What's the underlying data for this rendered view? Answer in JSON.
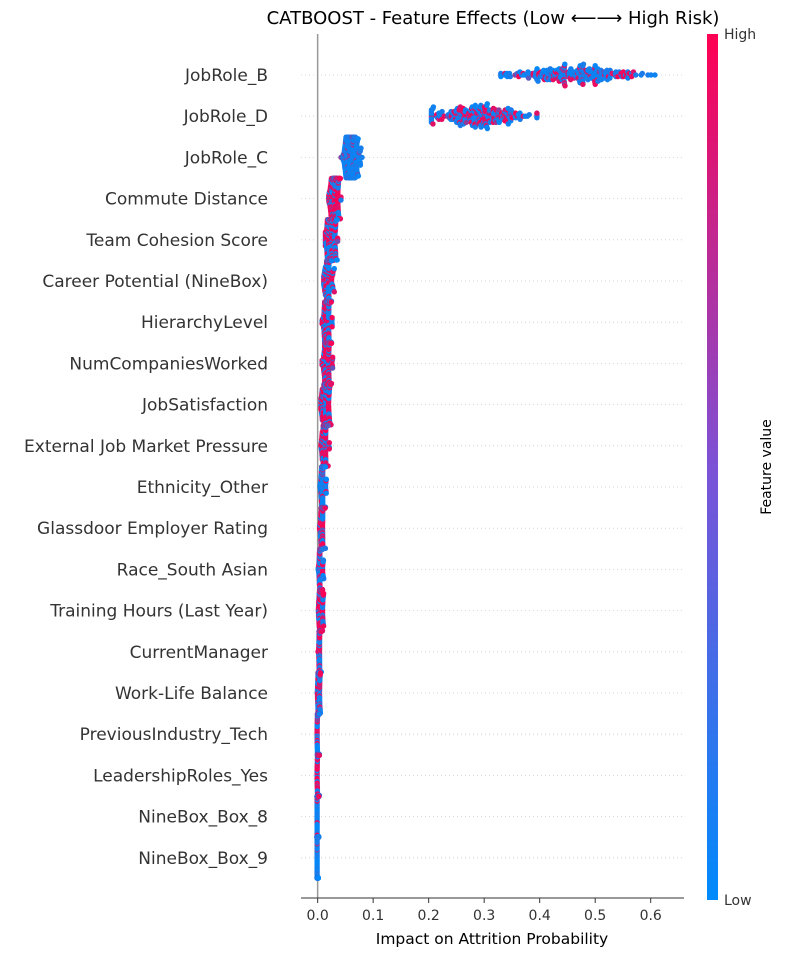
{
  "chart_data": {
    "type": "scatter",
    "subtype": "shap-beeswarm",
    "title": "CATBOOST - Feature Effects (Low ⟵⟶ High Risk)",
    "xlabel": "Impact on Attrition Probability",
    "xlim": [
      -0.03,
      0.66
    ],
    "xticks": [
      "0.0",
      "0.1",
      "0.2",
      "0.3",
      "0.4",
      "0.5",
      "0.6"
    ],
    "xtick_values": [
      0.0,
      0.1,
      0.2,
      0.3,
      0.4,
      0.5,
      0.6
    ],
    "colorbar": {
      "label": "Feature value",
      "high": "High",
      "low": "Low",
      "low_color": "#008afb",
      "high_color": "#ff0052"
    },
    "zero_line_color": "#999999",
    "grid": "dotted-horizontal",
    "features": [
      {
        "name": "JobRole_B",
        "center": 0.455,
        "spread": 0.055,
        "min": 0.33,
        "max": 0.625,
        "high_fraction": 0.25
      },
      {
        "name": "JobRole_D",
        "center": 0.29,
        "spread": 0.045,
        "min": 0.205,
        "max": 0.395,
        "high_fraction": 0.35
      },
      {
        "name": "JobRole_C",
        "center": 0.06,
        "spread": 0.008,
        "min": 0.04,
        "max": 0.08,
        "high_fraction": 0.0
      },
      {
        "name": "Commute Distance",
        "center": 0.031,
        "spread": 0.005,
        "min": 0.02,
        "max": 0.042,
        "high_fraction": 0.6
      },
      {
        "name": "Team Cohesion Score",
        "center": 0.024,
        "spread": 0.005,
        "min": 0.014,
        "max": 0.036,
        "high_fraction": 0.4
      },
      {
        "name": "Career Potential (NineBox)",
        "center": 0.02,
        "spread": 0.004,
        "min": 0.011,
        "max": 0.03,
        "high_fraction": 0.35
      },
      {
        "name": "HierarchyLevel",
        "center": 0.017,
        "spread": 0.004,
        "min": 0.008,
        "max": 0.026,
        "high_fraction": 0.45
      },
      {
        "name": "NumCompaniesWorked",
        "center": 0.017,
        "spread": 0.004,
        "min": 0.008,
        "max": 0.027,
        "high_fraction": 0.6
      },
      {
        "name": "JobSatisfaction",
        "center": 0.015,
        "spread": 0.004,
        "min": 0.006,
        "max": 0.024,
        "high_fraction": 0.5
      },
      {
        "name": "External Job Market Pressure",
        "center": 0.013,
        "spread": 0.003,
        "min": 0.005,
        "max": 0.021,
        "high_fraction": 0.55
      },
      {
        "name": "Ethnicity_Other",
        "center": 0.01,
        "spread": 0.002,
        "min": 0.004,
        "max": 0.016,
        "high_fraction": 0.1
      },
      {
        "name": "Glassdoor Employer Rating",
        "center": 0.009,
        "spread": 0.002,
        "min": 0.003,
        "max": 0.016,
        "high_fraction": 0.5
      },
      {
        "name": "Race_South Asian",
        "center": 0.006,
        "spread": 0.002,
        "min": 0.001,
        "max": 0.011,
        "high_fraction": 0.4
      },
      {
        "name": "Training Hours (Last Year)",
        "center": 0.006,
        "spread": 0.002,
        "min": 0.001,
        "max": 0.011,
        "high_fraction": 0.5
      },
      {
        "name": "CurrentManager",
        "center": 0.004,
        "spread": 0.001,
        "min": 0.0,
        "max": 0.009,
        "high_fraction": 0.5
      },
      {
        "name": "Work-Life Balance",
        "center": 0.002,
        "spread": 0.001,
        "min": -0.001,
        "max": 0.005,
        "high_fraction": 0.4
      },
      {
        "name": "PreviousIndustry_Tech",
        "center": 0.001,
        "spread": 0.001,
        "min": -0.001,
        "max": 0.003,
        "high_fraction": 0.4
      },
      {
        "name": "LeadershipRoles_Yes",
        "center": 0.001,
        "spread": 0.001,
        "min": -0.001,
        "max": 0.003,
        "high_fraction": 0.6
      },
      {
        "name": "NineBox_Box_8",
        "center": 0.0,
        "spread": 0.001,
        "min": -0.001,
        "max": 0.002,
        "high_fraction": 0.15
      },
      {
        "name": "NineBox_Box_9",
        "center": 0.0,
        "spread": 0.001,
        "min": -0.001,
        "max": 0.001,
        "high_fraction": 0.0
      }
    ]
  }
}
